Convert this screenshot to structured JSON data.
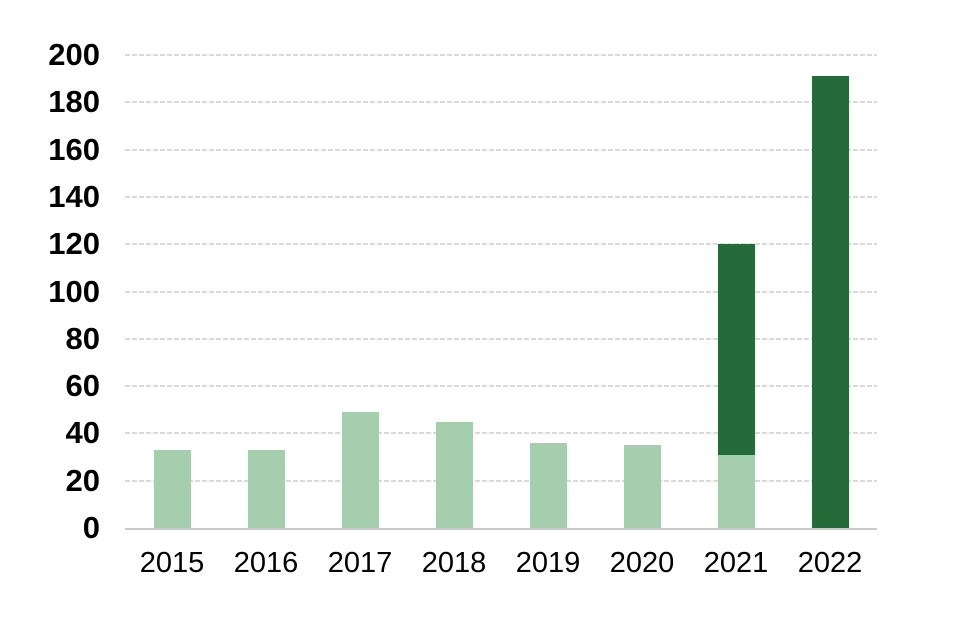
{
  "chart_data": {
    "type": "bar",
    "stacked": true,
    "title": "",
    "xlabel": "",
    "ylabel": "",
    "categories": [
      "2015",
      "2016",
      "2017",
      "2018",
      "2019",
      "2020",
      "2021",
      "2022"
    ],
    "series": [
      {
        "name": "light-green-segment",
        "color": "#a5ceae",
        "values": [
          33,
          33,
          49,
          45,
          36,
          35,
          31,
          0
        ]
      },
      {
        "name": "dark-green-segment",
        "color": "#256b39",
        "values": [
          0,
          0,
          0,
          0,
          0,
          0,
          89,
          191
        ]
      }
    ],
    "stack_totals": [
      33,
      33,
      49,
      45,
      36,
      35,
      120,
      191
    ],
    "ylim": [
      0,
      200
    ],
    "ytick_step": 20,
    "yticks": [
      "0",
      "20",
      "40",
      "60",
      "80",
      "100",
      "120",
      "140",
      "160",
      "180",
      "200"
    ],
    "grid": "horizontal-dashed",
    "legend_position": "none",
    "colors": {
      "gridline": "#d9d9d9",
      "axis_line": "#c9c9c9",
      "tick_label": "#000000",
      "background": "#ffffff"
    }
  }
}
